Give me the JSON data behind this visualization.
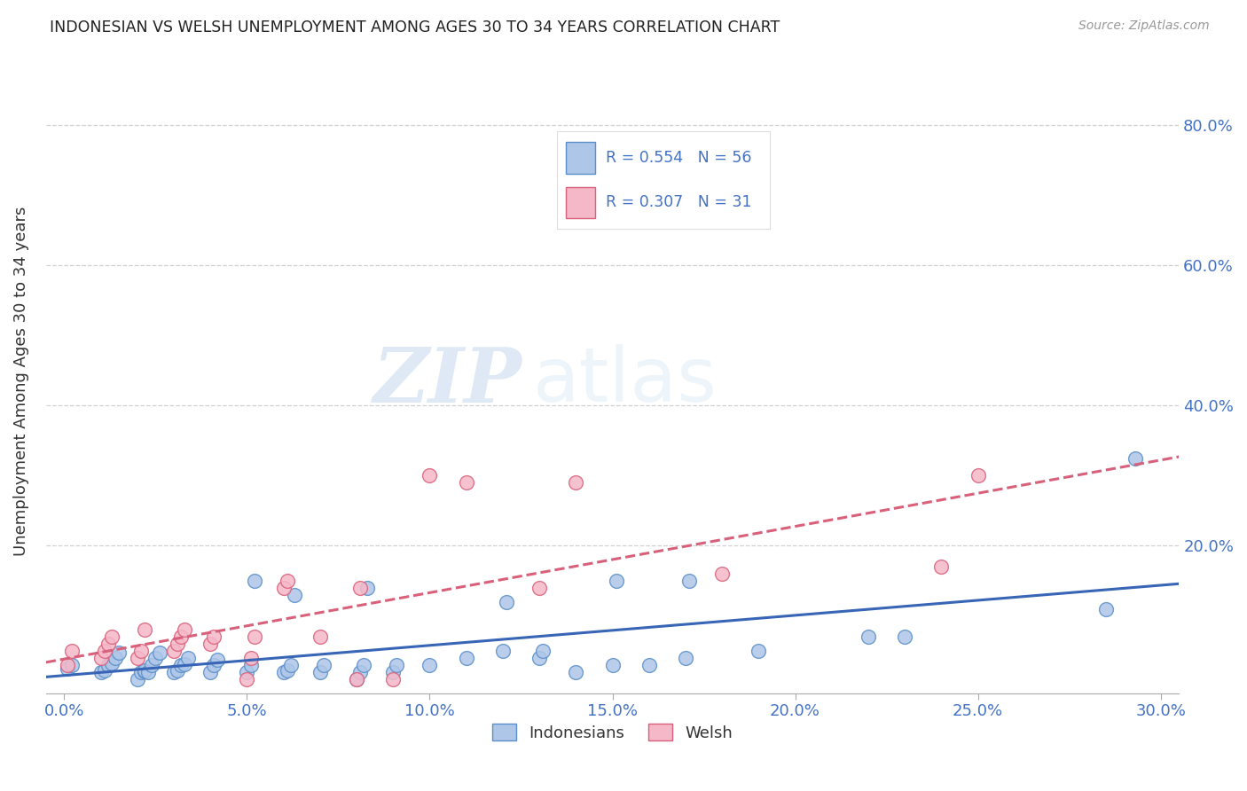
{
  "title": "INDONESIAN VS WELSH UNEMPLOYMENT AMONG AGES 30 TO 34 YEARS CORRELATION CHART",
  "source": "Source: ZipAtlas.com",
  "xlabel_ticks": [
    "0.0%",
    "5.0%",
    "10.0%",
    "15.0%",
    "20.0%",
    "25.0%",
    "30.0%"
  ],
  "ylabel_ticks": [
    "20.0%",
    "40.0%",
    "60.0%",
    "80.0%"
  ],
  "ylabel_label": "Unemployment Among Ages 30 to 34 years",
  "xlim": [
    -0.005,
    0.305
  ],
  "ylim": [
    -0.01,
    0.88
  ],
  "ytick_vals": [
    0.2,
    0.4,
    0.6,
    0.8
  ],
  "xtick_vals": [
    0.0,
    0.05,
    0.1,
    0.15,
    0.2,
    0.25,
    0.3
  ],
  "indonesian_color": "#aec6e8",
  "indonesian_edge_color": "#5b8fc9",
  "welsh_color": "#f5b8c8",
  "welsh_edge_color": "#d9607a",
  "trendline_indonesian_color": "#3865b5",
  "trendline_welsh_color": "#d9607a",
  "R_indonesian": "0.554",
  "N_indonesian": "56",
  "R_welsh": "0.307",
  "N_welsh": "31",
  "legend_label_indonesian": "Indonesians",
  "legend_label_welsh": "Welsh",
  "background_color": "#ffffff",
  "grid_color": "#cccccc",
  "indonesian_x": [
    0.001,
    0.002,
    0.01,
    0.011,
    0.012,
    0.013,
    0.014,
    0.015,
    0.02,
    0.021,
    0.022,
    0.022,
    0.023,
    0.024,
    0.025,
    0.026,
    0.03,
    0.031,
    0.032,
    0.033,
    0.034,
    0.04,
    0.041,
    0.042,
    0.05,
    0.051,
    0.052,
    0.06,
    0.061,
    0.062,
    0.063,
    0.07,
    0.071,
    0.08,
    0.081,
    0.082,
    0.083,
    0.09,
    0.091,
    0.1,
    0.11,
    0.12,
    0.121,
    0.13,
    0.131,
    0.14,
    0.15,
    0.151,
    0.16,
    0.17,
    0.171,
    0.19,
    0.22,
    0.23,
    0.285,
    0.293
  ],
  "indonesian_y": [
    0.025,
    0.03,
    0.02,
    0.022,
    0.03,
    0.032,
    0.04,
    0.048,
    0.01,
    0.02,
    0.021,
    0.022,
    0.02,
    0.03,
    0.04,
    0.048,
    0.02,
    0.022,
    0.03,
    0.031,
    0.04,
    0.02,
    0.03,
    0.038,
    0.02,
    0.03,
    0.15,
    0.02,
    0.022,
    0.03,
    0.13,
    0.02,
    0.03,
    0.01,
    0.02,
    0.03,
    0.14,
    0.02,
    0.03,
    0.03,
    0.04,
    0.05,
    0.12,
    0.04,
    0.05,
    0.02,
    0.03,
    0.15,
    0.03,
    0.04,
    0.15,
    0.05,
    0.07,
    0.07,
    0.11,
    0.325
  ],
  "welsh_x": [
    0.001,
    0.002,
    0.01,
    0.011,
    0.012,
    0.013,
    0.02,
    0.021,
    0.022,
    0.03,
    0.031,
    0.032,
    0.033,
    0.04,
    0.041,
    0.05,
    0.051,
    0.052,
    0.06,
    0.061,
    0.07,
    0.08,
    0.081,
    0.09,
    0.1,
    0.11,
    0.13,
    0.14,
    0.18,
    0.24,
    0.25
  ],
  "welsh_y": [
    0.03,
    0.05,
    0.04,
    0.05,
    0.06,
    0.07,
    0.04,
    0.05,
    0.08,
    0.05,
    0.06,
    0.07,
    0.08,
    0.06,
    0.07,
    0.01,
    0.04,
    0.07,
    0.14,
    0.15,
    0.07,
    0.01,
    0.14,
    0.01,
    0.3,
    0.29,
    0.14,
    0.29,
    0.16,
    0.17,
    0.3
  ]
}
